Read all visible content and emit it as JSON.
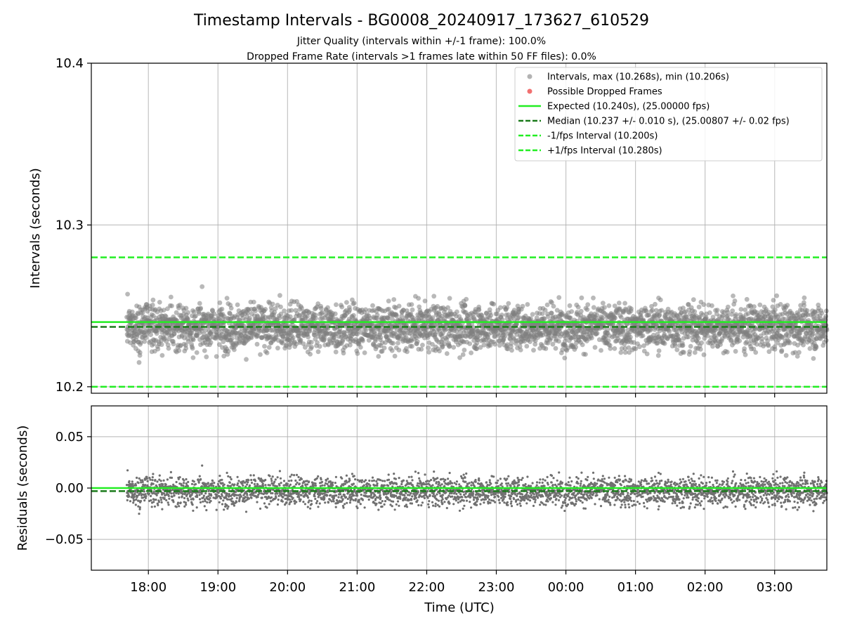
{
  "chart_data": {
    "title": "Timestamp Intervals - BG0008_20240917_173627_610529",
    "subtitle_1": "Jitter Quality (intervals within +/-1 frame): 100.0%",
    "subtitle_2": "Dropped Frame Rate (intervals >1 frames late within 50 FF files): 0.0%",
    "xlabel": "Time (UTC)",
    "x_ticks": [
      "18:00",
      "19:00",
      "20:00",
      "21:00",
      "22:00",
      "23:00",
      "00:00",
      "01:00",
      "02:00",
      "03:00"
    ],
    "x_range_hours_since_1700": [
      0.18,
      10.75
    ],
    "data_x_range_hours_since_1700": [
      0.69,
      10.75
    ],
    "panels": [
      {
        "name": "intervals",
        "type": "scatter",
        "ylabel": "Intervals (seconds)",
        "ylim": [
          10.196,
          10.4
        ],
        "y_ticks": [
          "10.2",
          "10.3",
          "10.4"
        ],
        "y_tick_values": [
          10.2,
          10.3,
          10.4
        ],
        "grid": true,
        "legend_position": "top-right",
        "series": [
          {
            "name": "Intervals, max (10.268s), min (10.206s)",
            "kind": "scatter",
            "color": "#808080",
            "center": 10.237,
            "spread": 0.01,
            "min": 10.206,
            "max": 10.268,
            "count": 3600
          },
          {
            "name": "Possible Dropped Frames",
            "kind": "scatter",
            "color": "#f06060",
            "count": 0
          },
          {
            "name": "Expected (10.240s), (25.00000 fps)",
            "kind": "hline",
            "y": 10.24,
            "color": "#22ee22",
            "style": "solid"
          },
          {
            "name": "Median (10.237 +/- 0.010 s), (25.00807 +/- 0.02 fps)",
            "kind": "hline",
            "y": 10.237,
            "color": "#1a7a1a",
            "style": "dashed"
          },
          {
            "name": "-1/fps Interval (10.200s)",
            "kind": "hline",
            "y": 10.2,
            "color": "#22ee22",
            "style": "dashed"
          },
          {
            "name": "+1/fps Interval (10.280s)",
            "kind": "hline",
            "y": 10.28,
            "color": "#22ee22",
            "style": "dashed"
          }
        ]
      },
      {
        "name": "residuals",
        "type": "scatter",
        "ylabel": "Residuals (seconds)",
        "ylim": [
          -0.08,
          0.08
        ],
        "y_ticks": [
          "0.05",
          "0.00",
          "−0.05"
        ],
        "y_tick_values": [
          0.05,
          0.0,
          -0.05
        ],
        "grid": true,
        "series": [
          {
            "kind": "scatter",
            "color": "#707070",
            "center": -0.003,
            "spread": 0.01,
            "min": -0.034,
            "max": 0.028,
            "count": 3600
          },
          {
            "kind": "hline",
            "y": 0.0,
            "color": "#22ee22",
            "style": "solid"
          },
          {
            "kind": "hline",
            "y": -0.003,
            "color": "#1a7a1a",
            "style": "dashed"
          }
        ]
      }
    ]
  }
}
